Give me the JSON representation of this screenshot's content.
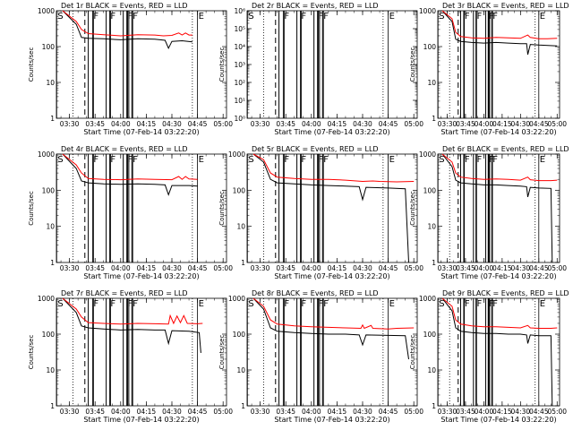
{
  "chart_data": {
    "type": "line",
    "layout": "3x3 grid of panels",
    "y_scale": "log",
    "ylim": [
      1,
      1000
    ],
    "y_ticks": [
      "1",
      "10",
      "100",
      "1000"
    ],
    "x_range": [
      "03:22:20",
      "05:02"
    ],
    "x_ticks": [
      "03:30",
      "03:45",
      "04:00",
      "04:15",
      "04:30",
      "04:45",
      "05:00"
    ],
    "ylabel": "Counts/sec",
    "xlabel": "Start Time (07-Feb-14 03:22:20)",
    "colors": {
      "events": "#000000",
      "lld": "#ff0000"
    },
    "series_names": {
      "events": "BLACK = Events",
      "lld": "RED = LLD"
    },
    "dotted_lines": [
      "03:32",
      "04:42"
    ],
    "dashed_line": "03:39",
    "markers": [
      {
        "label": "S",
        "t": "03:22:30"
      },
      {
        "label": "F",
        "t": "03:43:30"
      },
      {
        "label": "F",
        "t": "03:53:30"
      },
      {
        "label": "F",
        "t": "04:03:30"
      },
      {
        "label": "F",
        "t": "04:06:30"
      },
      {
        "label": "E",
        "t": "04:45:00"
      }
    ],
    "gaps": [
      [
        "03:41:00",
        "03:44:00"
      ],
      [
        "03:51:30",
        "03:54:00"
      ],
      [
        "04:01:30",
        "04:04:00"
      ],
      [
        "04:04:45",
        "04:07:00"
      ]
    ],
    "panels": [
      {
        "title": "Det 1r  BLACK = Events, RED = LLD",
        "lld": [
          [
            "03:26",
            1000
          ],
          [
            "03:34",
            500
          ],
          [
            "03:37",
            300
          ],
          [
            "03:41",
            230
          ],
          [
            "03:50",
            215
          ],
          [
            "04:00",
            200
          ],
          [
            "04:10",
            215
          ],
          [
            "04:20",
            210
          ],
          [
            "04:25",
            200
          ],
          [
            "04:30",
            205
          ],
          [
            "04:34",
            240
          ],
          [
            "04:36",
            210
          ],
          [
            "04:38",
            240
          ],
          [
            "04:40",
            210
          ],
          [
            "04:42",
            210
          ]
        ],
        "events": [
          [
            "03:26",
            1000
          ],
          [
            "03:34",
            420
          ],
          [
            "03:37",
            180
          ],
          [
            "03:41",
            170
          ],
          [
            "03:50",
            165
          ],
          [
            "04:00",
            155
          ],
          [
            "04:10",
            165
          ],
          [
            "04:20",
            160
          ],
          [
            "04:26",
            150
          ],
          [
            "04:28",
            90
          ],
          [
            "04:30",
            140
          ],
          [
            "04:36",
            145
          ],
          [
            "04:42",
            135
          ]
        ]
      },
      {
        "title": "Det 2r  BLACK = Events, RED = LLD",
        "ylim": [
          1,
          1000000
        ],
        "y_ticks": [
          "10⁰",
          "10¹",
          "10²",
          "10³",
          "10⁴",
          "10⁵",
          "10⁶"
        ],
        "lld": [],
        "events": []
      },
      {
        "title": "Det 3r  BLACK = Events, RED = LLD",
        "lld": [
          [
            "03:26",
            1000
          ],
          [
            "03:34",
            600
          ],
          [
            "03:37",
            250
          ],
          [
            "03:41",
            190
          ],
          [
            "03:50",
            175
          ],
          [
            "04:00",
            170
          ],
          [
            "04:10",
            180
          ],
          [
            "04:20",
            175
          ],
          [
            "04:30",
            170
          ],
          [
            "04:36",
            210
          ],
          [
            "04:38",
            180
          ],
          [
            "04:45",
            165
          ],
          [
            "04:52",
            165
          ],
          [
            "05:00",
            170
          ]
        ],
        "events": [
          [
            "03:26",
            1000
          ],
          [
            "03:34",
            500
          ],
          [
            "03:37",
            160
          ],
          [
            "03:41",
            140
          ],
          [
            "03:50",
            130
          ],
          [
            "04:00",
            125
          ],
          [
            "04:10",
            130
          ],
          [
            "04:20",
            125
          ],
          [
            "04:30",
            120
          ],
          [
            "04:35",
            120
          ],
          [
            "04:36",
            60
          ],
          [
            "04:38",
            115
          ],
          [
            "04:45",
            110
          ],
          [
            "05:00",
            105
          ]
        ]
      },
      {
        "title": "Det 4r  BLACK = Events, RED = LLD",
        "lld": [
          [
            "03:26",
            1000
          ],
          [
            "03:34",
            500
          ],
          [
            "03:37",
            300
          ],
          [
            "03:41",
            210
          ],
          [
            "03:50",
            200
          ],
          [
            "04:00",
            195
          ],
          [
            "04:10",
            205
          ],
          [
            "04:20",
            200
          ],
          [
            "04:30",
            195
          ],
          [
            "04:34",
            240
          ],
          [
            "04:36",
            200
          ],
          [
            "04:38",
            240
          ],
          [
            "04:40",
            205
          ],
          [
            "04:45",
            200
          ]
        ],
        "events": [
          [
            "03:26",
            1000
          ],
          [
            "03:34",
            400
          ],
          [
            "03:37",
            180
          ],
          [
            "03:41",
            160
          ],
          [
            "03:50",
            150
          ],
          [
            "04:00",
            145
          ],
          [
            "04:10",
            150
          ],
          [
            "04:20",
            145
          ],
          [
            "04:26",
            140
          ],
          [
            "04:28",
            75
          ],
          [
            "04:30",
            135
          ],
          [
            "04:40",
            135
          ],
          [
            "04:45",
            130
          ]
        ]
      },
      {
        "title": "Det 5r  BLACK = Events, RED = LLD",
        "lld": [
          [
            "03:26",
            1000
          ],
          [
            "03:32",
            700
          ],
          [
            "03:36",
            300
          ],
          [
            "03:40",
            230
          ],
          [
            "03:50",
            210
          ],
          [
            "04:00",
            200
          ],
          [
            "04:10",
            200
          ],
          [
            "04:20",
            190
          ],
          [
            "04:30",
            175
          ],
          [
            "04:36",
            180
          ],
          [
            "04:40",
            175
          ],
          [
            "04:50",
            170
          ],
          [
            "05:00",
            175
          ]
        ],
        "events": [
          [
            "03:26",
            1000
          ],
          [
            "03:32",
            600
          ],
          [
            "03:36",
            200
          ],
          [
            "03:40",
            160
          ],
          [
            "03:50",
            150
          ],
          [
            "04:00",
            140
          ],
          [
            "04:10",
            135
          ],
          [
            "04:20",
            130
          ],
          [
            "04:28",
            125
          ],
          [
            "04:30",
            55
          ],
          [
            "04:32",
            120
          ],
          [
            "04:45",
            115
          ],
          [
            "04:55",
            110
          ],
          [
            "04:57",
            1
          ]
        ]
      },
      {
        "title": "Det 6r  BLACK = Events, RED = LLD",
        "lld": [
          [
            "03:26",
            1000
          ],
          [
            "03:34",
            600
          ],
          [
            "03:37",
            300
          ],
          [
            "03:41",
            230
          ],
          [
            "03:50",
            210
          ],
          [
            "04:00",
            200
          ],
          [
            "04:10",
            205
          ],
          [
            "04:20",
            200
          ],
          [
            "04:30",
            190
          ],
          [
            "04:36",
            230
          ],
          [
            "04:38",
            195
          ],
          [
            "04:45",
            185
          ],
          [
            "04:55",
            185
          ],
          [
            "05:00",
            190
          ]
        ],
        "events": [
          [
            "03:26",
            1000
          ],
          [
            "03:34",
            450
          ],
          [
            "03:37",
            190
          ],
          [
            "03:41",
            160
          ],
          [
            "03:50",
            150
          ],
          [
            "04:00",
            140
          ],
          [
            "04:10",
            140
          ],
          [
            "04:20",
            135
          ],
          [
            "04:30",
            130
          ],
          [
            "04:35",
            125
          ],
          [
            "04:36",
            65
          ],
          [
            "04:38",
            120
          ],
          [
            "04:45",
            115
          ],
          [
            "04:55",
            112
          ],
          [
            "04:56",
            1
          ]
        ]
      },
      {
        "title": "Det 7r  BLACK = Events, RED = LLD",
        "lld": [
          [
            "03:26",
            1000
          ],
          [
            "03:34",
            500
          ],
          [
            "03:37",
            300
          ],
          [
            "03:41",
            210
          ],
          [
            "03:50",
            200
          ],
          [
            "04:00",
            190
          ],
          [
            "04:10",
            200
          ],
          [
            "04:20",
            195
          ],
          [
            "04:28",
            190
          ],
          [
            "04:29",
            330
          ],
          [
            "04:31",
            200
          ],
          [
            "04:33",
            320
          ],
          [
            "04:35",
            210
          ],
          [
            "04:37",
            330
          ],
          [
            "04:39",
            200
          ],
          [
            "04:45",
            195
          ],
          [
            "04:48",
            200
          ]
        ],
        "events": [
          [
            "03:26",
            1000
          ],
          [
            "03:34",
            400
          ],
          [
            "03:37",
            170
          ],
          [
            "03:41",
            150
          ],
          [
            "03:50",
            140
          ],
          [
            "04:00",
            130
          ],
          [
            "04:10",
            135
          ],
          [
            "04:20",
            130
          ],
          [
            "04:26",
            130
          ],
          [
            "04:28",
            55
          ],
          [
            "04:30",
            125
          ],
          [
            "04:40",
            120
          ],
          [
            "04:46",
            110
          ],
          [
            "04:47",
            30
          ]
        ]
      },
      {
        "title": "Det 8r  BLACK = Events, RED = LLD",
        "lld": [
          [
            "03:26",
            1000
          ],
          [
            "03:32",
            600
          ],
          [
            "03:36",
            250
          ],
          [
            "03:40",
            190
          ],
          [
            "03:50",
            170
          ],
          [
            "04:00",
            160
          ],
          [
            "04:10",
            155
          ],
          [
            "04:20",
            150
          ],
          [
            "04:29",
            145
          ],
          [
            "04:30",
            180
          ],
          [
            "04:31",
            145
          ],
          [
            "04:35",
            175
          ],
          [
            "04:36",
            145
          ],
          [
            "04:45",
            140
          ],
          [
            "04:50",
            145
          ],
          [
            "05:00",
            150
          ]
        ],
        "events": [
          [
            "03:26",
            1000
          ],
          [
            "03:32",
            500
          ],
          [
            "03:36",
            150
          ],
          [
            "03:40",
            120
          ],
          [
            "03:50",
            110
          ],
          [
            "04:00",
            105
          ],
          [
            "04:10",
            100
          ],
          [
            "04:20",
            100
          ],
          [
            "04:28",
            95
          ],
          [
            "04:30",
            50
          ],
          [
            "04:32",
            95
          ],
          [
            "04:45",
            92
          ],
          [
            "04:55",
            90
          ],
          [
            "04:57",
            20
          ]
        ]
      },
      {
        "title": "Det 9r  BLACK = Events, RED = LLD",
        "lld": [
          [
            "03:26",
            1000
          ],
          [
            "03:34",
            600
          ],
          [
            "03:37",
            250
          ],
          [
            "03:41",
            190
          ],
          [
            "03:50",
            170
          ],
          [
            "04:00",
            160
          ],
          [
            "04:10",
            160
          ],
          [
            "04:20",
            155
          ],
          [
            "04:30",
            150
          ],
          [
            "04:36",
            175
          ],
          [
            "04:38",
            150
          ],
          [
            "04:45",
            145
          ],
          [
            "04:55",
            145
          ],
          [
            "05:00",
            150
          ]
        ],
        "events": [
          [
            "03:26",
            1000
          ],
          [
            "03:34",
            450
          ],
          [
            "03:37",
            150
          ],
          [
            "03:41",
            120
          ],
          [
            "03:50",
            110
          ],
          [
            "04:00",
            105
          ],
          [
            "04:10",
            105
          ],
          [
            "04:20",
            100
          ],
          [
            "04:30",
            100
          ],
          [
            "04:35",
            95
          ],
          [
            "04:36",
            55
          ],
          [
            "04:38",
            95
          ],
          [
            "04:45",
            90
          ],
          [
            "04:55",
            90
          ],
          [
            "04:56",
            1
          ]
        ]
      }
    ]
  }
}
